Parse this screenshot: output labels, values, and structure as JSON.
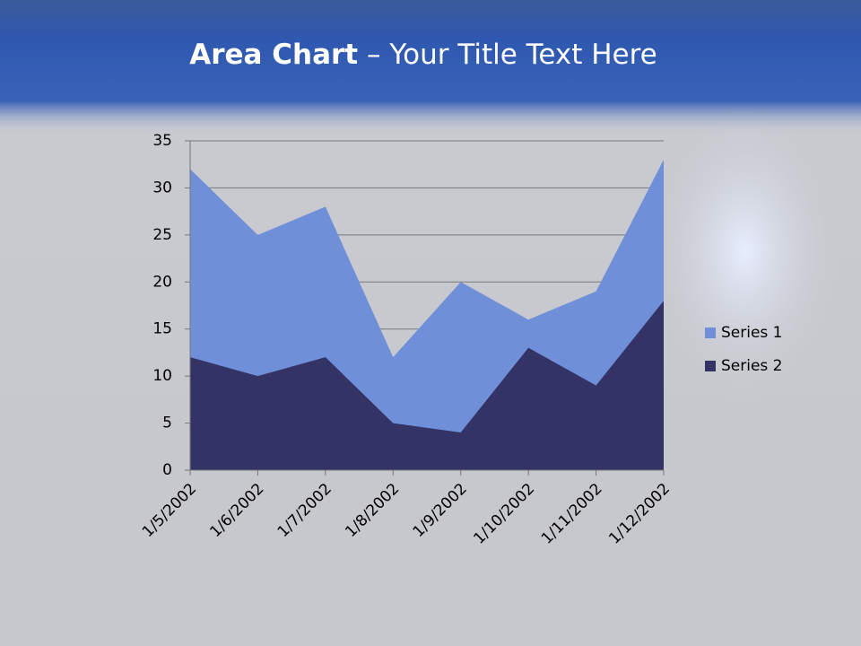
{
  "chart_data": {
    "type": "area",
    "title_parts": [
      "Area Chart",
      "– Your Title Text Here"
    ],
    "categories": [
      "1/5/2002",
      "1/6/2002",
      "1/7/2002",
      "1/8/2002",
      "1/9/2002",
      "1/10/2002",
      "1/11/2002",
      "1/12/2002"
    ],
    "series": [
      {
        "name": "Series 1",
        "color": "#6f8fd8",
        "values": [
          32,
          25,
          28,
          12,
          20,
          16,
          19,
          33
        ]
      },
      {
        "name": "Series 2",
        "color": "#333366",
        "values": [
          12,
          10,
          12,
          5,
          4,
          13,
          9,
          18
        ]
      }
    ],
    "stacked": false,
    "ylim": [
      0,
      35
    ],
    "yticks": [
      0,
      5,
      10,
      15,
      20,
      25,
      30,
      35
    ],
    "grid": true,
    "legend": "right"
  }
}
